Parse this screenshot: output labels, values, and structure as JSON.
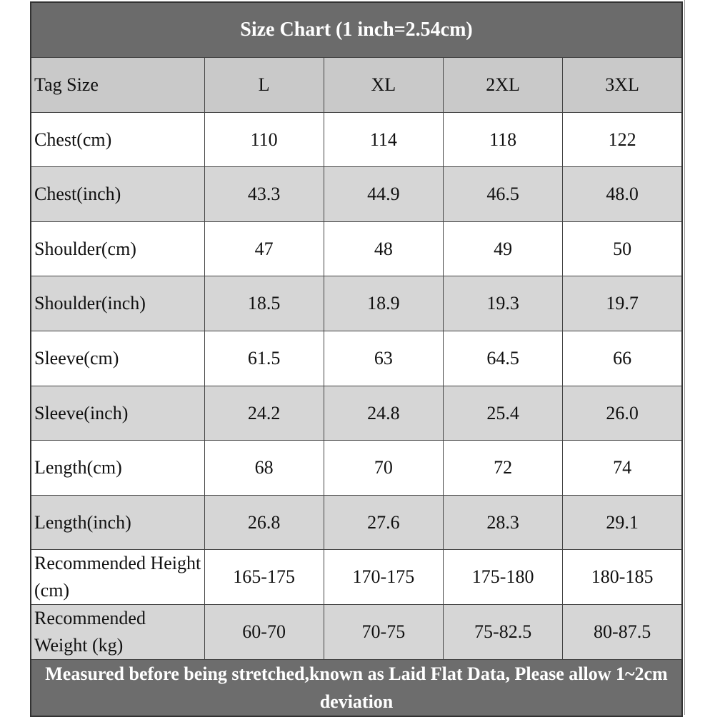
{
  "title": "Size Chart (1 inch=2.54cm)",
  "table": {
    "header": [
      "Tag Size",
      "L",
      "XL",
      "2XL",
      "3XL"
    ],
    "rows": [
      [
        "Chest(cm)",
        "110",
        "114",
        "118",
        "122"
      ],
      [
        "Chest(inch)",
        "43.3",
        "44.9",
        "46.5",
        "48.0"
      ],
      [
        "Shoulder(cm)",
        "47",
        "48",
        "49",
        "50"
      ],
      [
        "Shoulder(inch)",
        "18.5",
        "18.9",
        "19.3",
        "19.7"
      ],
      [
        "Sleeve(cm)",
        "61.5",
        "63",
        "64.5",
        "66"
      ],
      [
        "Sleeve(inch)",
        "24.2",
        "24.8",
        "25.4",
        "26.0"
      ],
      [
        "Length(cm)",
        "68",
        "70",
        "72",
        "74"
      ],
      [
        "Length(inch)",
        "26.8",
        "27.6",
        "28.3",
        "29.1"
      ],
      [
        "Recommended Height (cm)",
        "165-175",
        "170-175",
        "175-180",
        "180-185"
      ],
      [
        "Recommended Weight (kg)",
        "60-70",
        "70-75",
        "75-82.5",
        "80-87.5"
      ]
    ]
  },
  "footer": "Measured before being stretched,known as Laid Flat Data, Please allow 1~2cm deviation"
}
